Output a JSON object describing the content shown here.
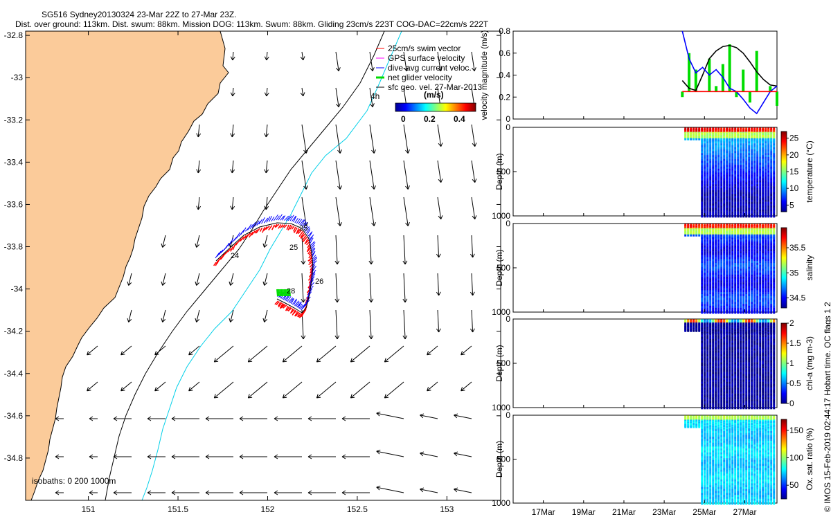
{
  "title_line1": "SG516 Sydney20130324 23-Mar 22Z to 27-Mar 23Z.",
  "title_line2": "Dist. over ground: 113km. Dist. swum: 88km. Mission DOG: 113km. Swum: 88km. Gliding 23cm/s 223T COG-DAC=22cm/s 222T",
  "credit": "© IMOS 15-Feb-2019 02:44:17 Hobart time. QC flags 1  2",
  "colors": {
    "land": "#fbcb9a",
    "coast": "#000000",
    "isobath200": "#000000",
    "isobath1000": "#00d0e8",
    "glider_track": "#0000ff",
    "swim": "#ff0000",
    "net": "#00dd00",
    "gps": "#ff00ff"
  },
  "chart_data": [
    {
      "type": "map",
      "x_ticks": [
        "151",
        "151.5",
        "152",
        "152.5",
        "153"
      ],
      "y_ticks": [
        "-32.8",
        "-33",
        "-33.2",
        "-33.4",
        "-33.6",
        "-33.8",
        "-34",
        "-34.2",
        "-34.4",
        "-34.6",
        "-34.8"
      ],
      "xlim": [
        150.65,
        153.3
      ],
      "ylim": [
        -35.0,
        -32.78
      ],
      "legend": [
        {
          "label": "25cm/s swim vector",
          "color": "#ff0000"
        },
        {
          "label": "GPS surface velocity",
          "color": "#ff00ff"
        },
        {
          "label": "dive-avg current veloc.",
          "color": "#0000ff"
        },
        {
          "label": "net glider velocity",
          "color": "#00dd00"
        },
        {
          "label": "sfc geo. vel. 27-Mar-2013",
          "color": "#000000"
        }
      ],
      "colorbar": {
        "unit": "(m/s)",
        "ticks": [
          "0",
          "0.2",
          "0.4"
        ],
        "range": [
          0,
          0.5
        ]
      },
      "isobaths_label": "isobaths: 0  200  1000m",
      "time_label": "4h",
      "track_labels": [
        "24",
        "25",
        "25",
        "26",
        "28"
      ]
    },
    {
      "type": "line",
      "ylabel": "velocity magnitude (m/s)",
      "y_ticks": [
        "0",
        "0.2",
        "0.4",
        "0.6",
        "0.8"
      ],
      "ylim": [
        0,
        0.8
      ],
      "series": [
        {
          "color": "#000000",
          "values": [
            0.35,
            0.28,
            0.26,
            0.4,
            0.55,
            0.62,
            0.66,
            0.67,
            0.65,
            0.6,
            0.52,
            0.43,
            0.36,
            0.31,
            0.3
          ]
        },
        {
          "color": "#0000ff",
          "values": [
            0.8,
            0.55,
            0.42,
            0.47,
            0.4,
            0.45,
            0.38,
            0.28,
            0.25,
            0.18,
            0.1,
            0.05,
            0.15,
            0.25,
            0.3
          ]
        },
        {
          "color": "#ff0000",
          "values": [
            0.25,
            0.25,
            0.25,
            0.25,
            0.25,
            0.25,
            0.25,
            0.25,
            0.25,
            0.25,
            0.25,
            0.25,
            0.25,
            0.25,
            0.25
          ]
        }
      ]
    },
    {
      "type": "heatmap",
      "ylabel": "Depth (m)",
      "y_ticks": [
        "0",
        "500",
        "1000"
      ],
      "ylim": [
        1000,
        0
      ],
      "cbar_label": "temperature (°C)",
      "cbar_ticks": [
        "5",
        "10",
        "15",
        "20",
        "25"
      ],
      "cbar_range": [
        3,
        27
      ]
    },
    {
      "type": "heatmap",
      "ylabel": "Depth (m)",
      "y_ticks": [
        "0",
        "500",
        "1000"
      ],
      "ylim": [
        1000,
        0
      ],
      "cbar_label": "salinity",
      "cbar_ticks": [
        "34.5",
        "35",
        "35.5"
      ],
      "cbar_range": [
        34.3,
        35.9
      ]
    },
    {
      "type": "heatmap",
      "ylabel": "Depth (m)",
      "y_ticks": [
        "0",
        "500",
        "1000"
      ],
      "ylim": [
        1000,
        0
      ],
      "cbar_label": "chl-a (mg m-3)",
      "cbar_ticks": [
        "0",
        "0.5",
        "1",
        "1.5",
        "2"
      ],
      "cbar_range": [
        0,
        2
      ]
    },
    {
      "type": "heatmap",
      "ylabel": "Depth (m)",
      "y_ticks": [
        "0",
        "500",
        "1000"
      ],
      "ylim": [
        1000,
        0
      ],
      "cbar_label": "Ox. sat. ratio (%)",
      "cbar_ticks": [
        "50",
        "100",
        "150"
      ],
      "cbar_range": [
        25,
        170
      ]
    }
  ],
  "date_ticks": [
    "17Mar",
    "19Mar",
    "21Mar",
    "23Mar",
    "25Mar",
    "27Mar"
  ]
}
